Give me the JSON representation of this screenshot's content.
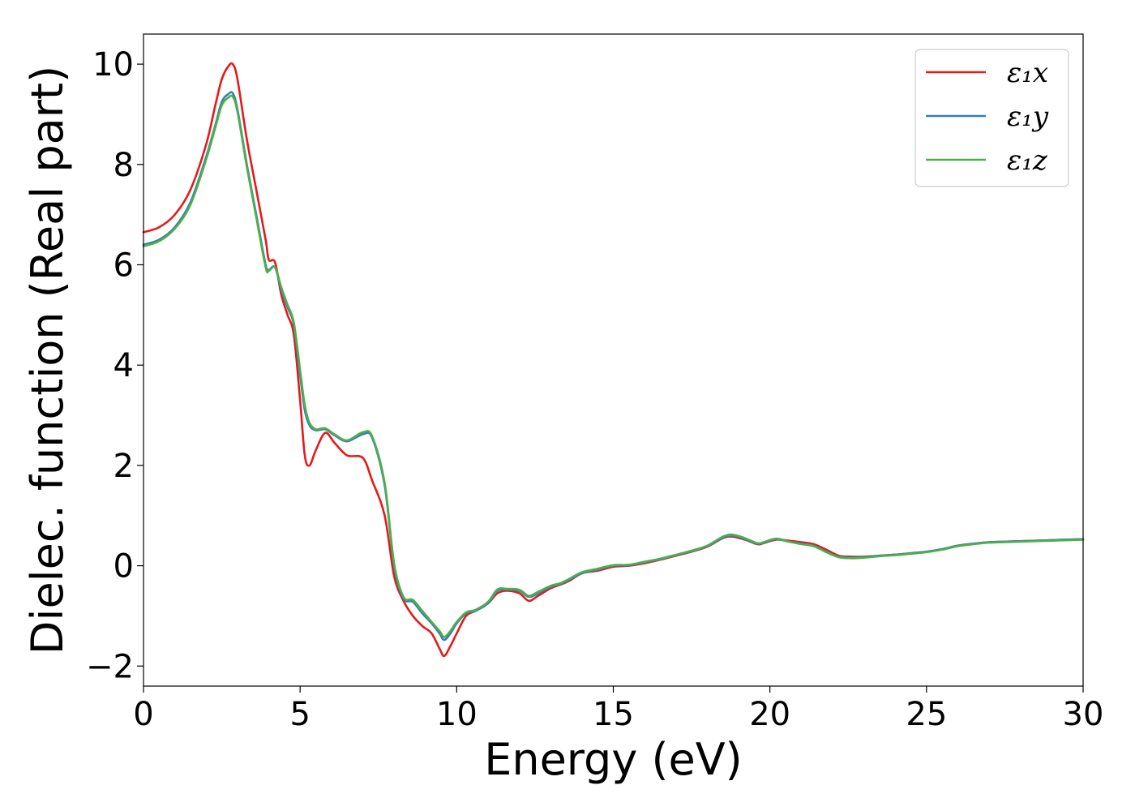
{
  "chart_data": {
    "type": "line",
    "title": "",
    "xlabel": "Energy (eV)",
    "ylabel": "Dielec. function (Real part)",
    "xlim": [
      0,
      30
    ],
    "ylim": [
      -2.4,
      10.6
    ],
    "xticks": [
      0,
      5,
      10,
      15,
      20,
      25,
      30
    ],
    "xtick_labels": [
      "0",
      "5",
      "10",
      "15",
      "20",
      "25",
      "30"
    ],
    "yticks": [
      -2,
      0,
      2,
      4,
      6,
      8,
      10
    ],
    "ytick_labels": [
      "−2",
      "0",
      "2",
      "4",
      "6",
      "8",
      "10"
    ],
    "grid": false,
    "legend_position": "top-right",
    "series": [
      {
        "name": "ε₁x",
        "color": "#e41a1c",
        "x": [
          0,
          0.5,
          1.0,
          1.5,
          2.0,
          2.3,
          2.5,
          2.7,
          2.85,
          3.0,
          3.3,
          3.6,
          3.9,
          4.0,
          4.2,
          4.4,
          4.6,
          4.8,
          5.0,
          5.15,
          5.3,
          5.5,
          5.8,
          6.1,
          6.5,
          7.0,
          7.3,
          7.7,
          8.0,
          8.3,
          8.6,
          8.9,
          9.2,
          9.45,
          9.6,
          9.8,
          10.0,
          10.3,
          10.6,
          11.0,
          11.3,
          11.6,
          12.0,
          12.3,
          12.6,
          13.0,
          13.3,
          13.6,
          14.0,
          14.5,
          15.0,
          15.5,
          16.0,
          16.5,
          17.0,
          17.5,
          18.0,
          18.5,
          18.8,
          19.2,
          19.6,
          19.8,
          20.2,
          20.6,
          21.0,
          21.4,
          21.8,
          22.2,
          22.6,
          23.0,
          23.5,
          24.0,
          24.5,
          25.0,
          25.5,
          26.0,
          26.5,
          27.0,
          27.5,
          28.0,
          28.5,
          29.0,
          29.5,
          30.0
        ],
        "y": [
          6.65,
          6.75,
          7.0,
          7.5,
          8.4,
          9.2,
          9.7,
          9.95,
          10.0,
          9.7,
          8.5,
          7.5,
          6.5,
          6.1,
          6.05,
          5.4,
          5.0,
          4.6,
          3.3,
          2.2,
          2.0,
          2.3,
          2.65,
          2.45,
          2.2,
          2.15,
          1.7,
          1.0,
          -0.2,
          -0.7,
          -1.0,
          -1.2,
          -1.35,
          -1.65,
          -1.8,
          -1.6,
          -1.35,
          -1.0,
          -0.9,
          -0.75,
          -0.55,
          -0.5,
          -0.55,
          -0.7,
          -0.6,
          -0.45,
          -0.38,
          -0.3,
          -0.15,
          -0.1,
          -0.02,
          0.0,
          0.05,
          0.12,
          0.2,
          0.28,
          0.38,
          0.55,
          0.58,
          0.52,
          0.43,
          0.45,
          0.52,
          0.5,
          0.47,
          0.43,
          0.32,
          0.2,
          0.18,
          0.18,
          0.2,
          0.22,
          0.25,
          0.28,
          0.33,
          0.4,
          0.44,
          0.47,
          0.48,
          0.49,
          0.5,
          0.51,
          0.52,
          0.53
        ]
      },
      {
        "name": "ε₁y",
        "color": "#377eb8",
        "x": [
          0,
          0.5,
          1.0,
          1.5,
          2.0,
          2.3,
          2.5,
          2.7,
          2.85,
          3.0,
          3.3,
          3.6,
          3.9,
          4.0,
          4.2,
          4.4,
          4.6,
          4.8,
          5.0,
          5.15,
          5.3,
          5.5,
          5.8,
          6.1,
          6.5,
          7.0,
          7.3,
          7.7,
          8.0,
          8.3,
          8.6,
          8.9,
          9.2,
          9.45,
          9.6,
          9.8,
          10.0,
          10.3,
          10.6,
          11.0,
          11.3,
          11.6,
          12.0,
          12.3,
          12.6,
          13.0,
          13.3,
          13.6,
          14.0,
          14.5,
          15.0,
          15.5,
          16.0,
          16.5,
          17.0,
          17.5,
          18.0,
          18.5,
          18.8,
          19.2,
          19.6,
          19.8,
          20.2,
          20.6,
          21.0,
          21.4,
          21.8,
          22.2,
          22.6,
          23.0,
          23.5,
          24.0,
          24.5,
          25.0,
          25.5,
          26.0,
          26.5,
          27.0,
          27.5,
          28.0,
          28.5,
          29.0,
          29.5,
          30.0
        ],
        "y": [
          6.4,
          6.5,
          6.75,
          7.25,
          8.15,
          8.8,
          9.25,
          9.4,
          9.42,
          9.1,
          8.0,
          7.0,
          6.0,
          5.9,
          5.95,
          5.5,
          5.15,
          4.8,
          3.8,
          3.1,
          2.8,
          2.7,
          2.72,
          2.6,
          2.48,
          2.62,
          2.55,
          1.6,
          0.0,
          -0.65,
          -0.72,
          -0.95,
          -1.15,
          -1.35,
          -1.48,
          -1.35,
          -1.15,
          -0.95,
          -0.9,
          -0.75,
          -0.5,
          -0.48,
          -0.5,
          -0.62,
          -0.55,
          -0.42,
          -0.37,
          -0.28,
          -0.15,
          -0.08,
          0.0,
          0.01,
          0.07,
          0.13,
          0.21,
          0.29,
          0.39,
          0.56,
          0.6,
          0.53,
          0.44,
          0.46,
          0.53,
          0.48,
          0.44,
          0.4,
          0.28,
          0.18,
          0.16,
          0.17,
          0.2,
          0.22,
          0.25,
          0.28,
          0.33,
          0.4,
          0.44,
          0.47,
          0.48,
          0.49,
          0.5,
          0.51,
          0.52,
          0.53
        ]
      },
      {
        "name": "ε₁z",
        "color": "#4daf4a",
        "x": [
          0,
          0.5,
          1.0,
          1.5,
          2.0,
          2.3,
          2.5,
          2.7,
          2.85,
          3.0,
          3.3,
          3.6,
          3.9,
          4.0,
          4.2,
          4.4,
          4.6,
          4.8,
          5.0,
          5.15,
          5.3,
          5.5,
          5.8,
          6.1,
          6.5,
          7.0,
          7.3,
          7.7,
          8.0,
          8.3,
          8.6,
          8.9,
          9.2,
          9.45,
          9.6,
          9.8,
          10.0,
          10.3,
          10.6,
          11.0,
          11.3,
          11.6,
          12.0,
          12.3,
          12.6,
          13.0,
          13.3,
          13.6,
          14.0,
          14.5,
          15.0,
          15.5,
          16.0,
          16.5,
          17.0,
          17.5,
          18.0,
          18.5,
          18.8,
          19.2,
          19.6,
          19.8,
          20.2,
          20.6,
          21.0,
          21.4,
          21.8,
          22.2,
          22.6,
          23.0,
          23.5,
          24.0,
          24.5,
          25.0,
          25.5,
          26.0,
          26.5,
          27.0,
          27.5,
          28.0,
          28.5,
          29.0,
          29.5,
          30.0
        ],
        "y": [
          6.37,
          6.47,
          6.72,
          7.2,
          8.1,
          8.75,
          9.18,
          9.33,
          9.35,
          9.05,
          7.95,
          6.95,
          5.95,
          5.88,
          5.95,
          5.55,
          5.2,
          4.85,
          3.9,
          3.2,
          2.85,
          2.72,
          2.74,
          2.62,
          2.5,
          2.66,
          2.58,
          1.65,
          0.05,
          -0.62,
          -0.68,
          -0.9,
          -1.12,
          -1.3,
          -1.42,
          -1.3,
          -1.12,
          -0.93,
          -0.88,
          -0.72,
          -0.47,
          -0.46,
          -0.48,
          -0.6,
          -0.52,
          -0.4,
          -0.35,
          -0.26,
          -0.13,
          -0.06,
          0.01,
          0.02,
          0.08,
          0.14,
          0.22,
          0.3,
          0.4,
          0.58,
          0.62,
          0.55,
          0.45,
          0.47,
          0.54,
          0.48,
          0.43,
          0.39,
          0.27,
          0.17,
          0.15,
          0.16,
          0.19,
          0.21,
          0.24,
          0.27,
          0.32,
          0.39,
          0.43,
          0.46,
          0.47,
          0.48,
          0.49,
          0.5,
          0.51,
          0.52
        ]
      }
    ]
  }
}
